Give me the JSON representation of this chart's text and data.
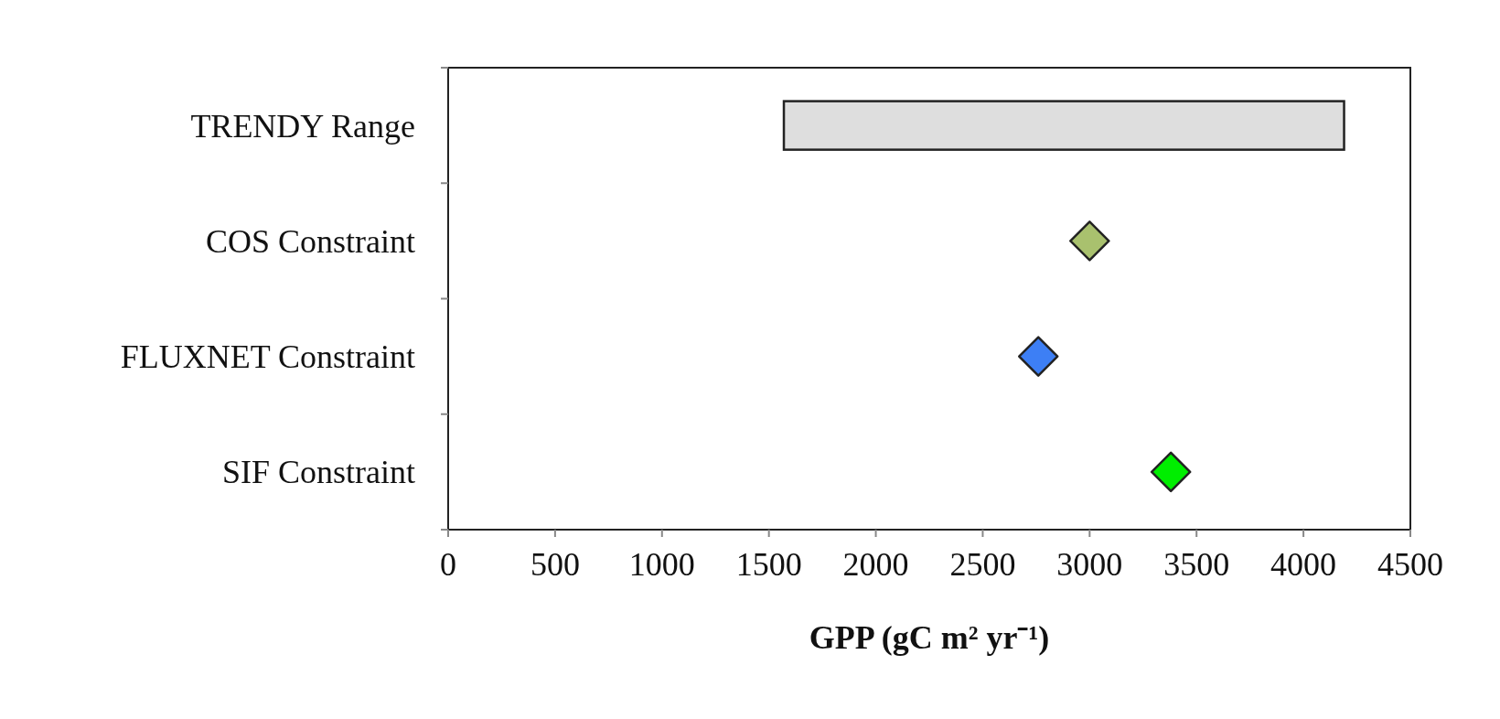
{
  "chart_data": {
    "type": "bar",
    "orientation": "horizontal",
    "xlabel": "GPP (gC m² yr⁻¹)",
    "categories": [
      "TRENDY Range",
      "COS Constraint",
      "FLUXNET Constraint",
      "SIF Constraint"
    ],
    "series": [
      {
        "color": "#dedede",
        "base": [
          1570,
          null,
          null,
          null
        ],
        "values": [
          2620,
          null,
          null,
          null
        ]
      },
      {
        "type": "scatter",
        "marker": "diamond",
        "colors": [
          null,
          "#a9c16e",
          "#3d7ff5",
          "#00ee00"
        ],
        "values": [
          null,
          3000,
          2760,
          3380
        ]
      }
    ],
    "xlim": [
      0,
      4500
    ],
    "xticks": [
      0,
      500,
      1000,
      1500,
      2000,
      2500,
      3000,
      3500,
      4000,
      4500
    ],
    "grid": false
  }
}
